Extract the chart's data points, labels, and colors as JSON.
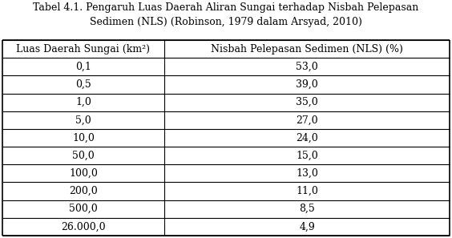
{
  "title_line1": "Tabel 4.1. Pengaruh Luas Daerah Aliran Sungai terhadap Nisbah Pelepasan",
  "title_line2": "Sedimen (NLS) (Robinson, 1979 dalam Arsyad, 2010)",
  "col1_header": "Luas Daerah Sungai (km²)",
  "col2_header": "Nisbah Pelepasan Sedimen (NLS) (%)",
  "col1_data": [
    "0,1",
    "0,5",
    "1,0",
    "5,0",
    "10,0",
    "50,0",
    "100,0",
    "200,0",
    "500,0",
    "26.000,0"
  ],
  "col2_data": [
    "53,0",
    "39,0",
    "35,0",
    "27,0",
    "24,0",
    "15,0",
    "13,0",
    "11,0",
    "8,5",
    "4,9"
  ],
  "bg_color": "#ffffff",
  "text_color": "#000000",
  "border_color": "#000000",
  "title_fontsize": 9.0,
  "header_fontsize": 9.0,
  "cell_fontsize": 9.0,
  "fig_width": 5.64,
  "fig_height": 2.97,
  "dpi": 100
}
